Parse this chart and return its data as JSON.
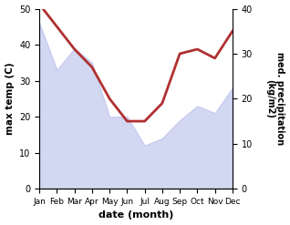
{
  "months": [
    "Jan",
    "Feb",
    "Mar",
    "Apr",
    "May",
    "Jun",
    "Jul",
    "Aug",
    "Sep",
    "Oct",
    "Nov",
    "Dec"
  ],
  "max_temp": [
    46,
    33,
    39,
    35,
    20,
    20,
    12,
    14,
    19,
    23,
    21,
    28
  ],
  "precipitation": [
    41,
    36,
    31,
    27,
    20,
    15,
    15,
    19,
    30,
    31,
    29,
    35
  ],
  "temp_ylim": [
    0,
    50
  ],
  "precip_ylim": [
    0,
    40
  ],
  "temp_yticks": [
    0,
    10,
    20,
    30,
    40,
    50
  ],
  "precip_yticks": [
    0,
    10,
    20,
    30,
    40
  ],
  "fill_color": "#b0b8e8",
  "fill_alpha": 0.55,
  "line_color": "#b03030",
  "line_width": 2.0,
  "xlabel": "date (month)",
  "ylabel_left": "max temp (C)",
  "ylabel_right": "med. precipitation\n(kg/m2)",
  "bg_color": "#ffffff"
}
